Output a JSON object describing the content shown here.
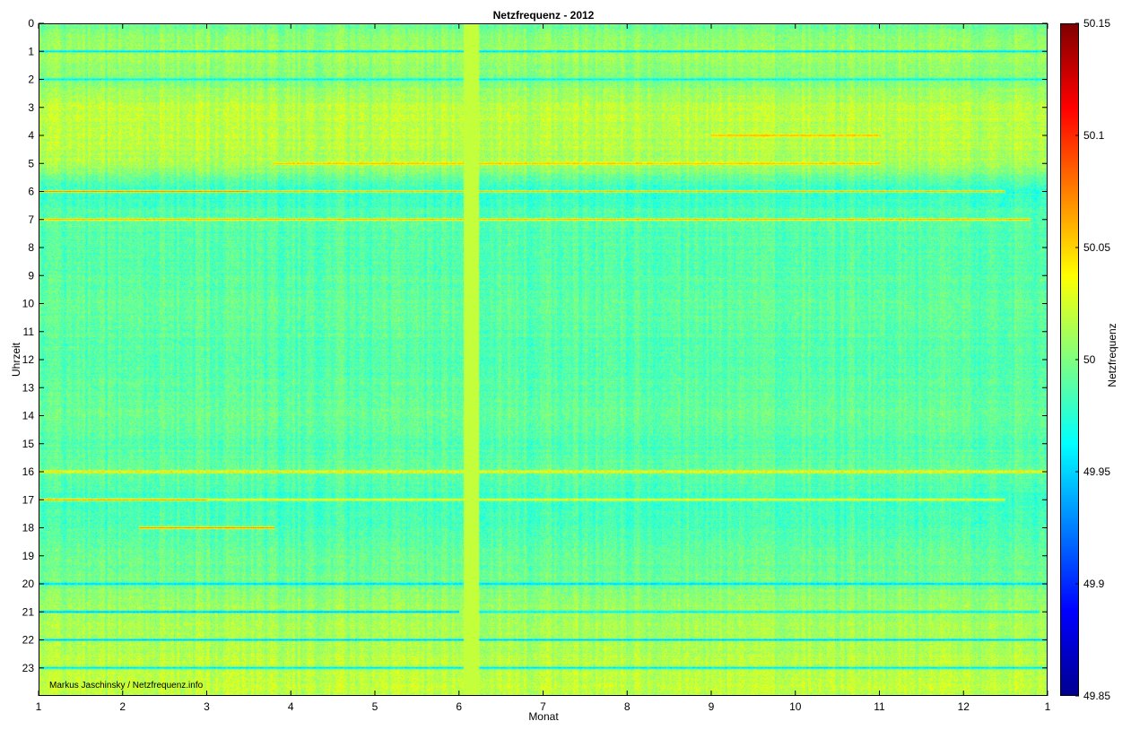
{
  "chart_data": {
    "type": "heatmap",
    "title": "Netzfrequenz - 2012",
    "xlabel": "Monat",
    "ylabel": "Uhrzeit",
    "colorbar_label": "Netzfrequenz",
    "colormap": "jet",
    "colormap_stops": [
      "#00008f",
      "#0000ff",
      "#00ffff",
      "#ffff00",
      "#ff0000",
      "#800000"
    ],
    "clim": [
      49.85,
      50.15
    ],
    "xlim": [
      1,
      13
    ],
    "ylim": [
      0,
      24
    ],
    "x_ticks": [
      {
        "value": 1,
        "label": "1"
      },
      {
        "value": 2,
        "label": "2"
      },
      {
        "value": 3,
        "label": "3"
      },
      {
        "value": 4,
        "label": "4"
      },
      {
        "value": 5,
        "label": "5"
      },
      {
        "value": 6,
        "label": "6"
      },
      {
        "value": 7,
        "label": "7"
      },
      {
        "value": 8,
        "label": "8"
      },
      {
        "value": 9,
        "label": "9"
      },
      {
        "value": 10,
        "label": "10"
      },
      {
        "value": 11,
        "label": "11"
      },
      {
        "value": 12,
        "label": "12"
      },
      {
        "value": 13,
        "label": "1"
      }
    ],
    "y_ticks": [
      {
        "value": 0,
        "label": "0"
      },
      {
        "value": 1,
        "label": "1"
      },
      {
        "value": 2,
        "label": "2"
      },
      {
        "value": 3,
        "label": "3"
      },
      {
        "value": 4,
        "label": "4"
      },
      {
        "value": 5,
        "label": "5"
      },
      {
        "value": 6,
        "label": "6"
      },
      {
        "value": 7,
        "label": "7"
      },
      {
        "value": 8,
        "label": "8"
      },
      {
        "value": 9,
        "label": "9"
      },
      {
        "value": 10,
        "label": "10"
      },
      {
        "value": 11,
        "label": "11"
      },
      {
        "value": 12,
        "label": "12"
      },
      {
        "value": 13,
        "label": "13"
      },
      {
        "value": 14,
        "label": "14"
      },
      {
        "value": 15,
        "label": "15"
      },
      {
        "value": 16,
        "label": "16"
      },
      {
        "value": 17,
        "label": "17"
      },
      {
        "value": 18,
        "label": "18"
      },
      {
        "value": 19,
        "label": "19"
      },
      {
        "value": 20,
        "label": "20"
      },
      {
        "value": 21,
        "label": "21"
      },
      {
        "value": 22,
        "label": "22"
      },
      {
        "value": 23,
        "label": "23"
      }
    ],
    "colorbar_ticks": [
      {
        "value": 49.85,
        "label": "49.85"
      },
      {
        "value": 49.9,
        "label": "49.9"
      },
      {
        "value": 49.95,
        "label": "49.95"
      },
      {
        "value": 50.0,
        "label": "50"
      },
      {
        "value": 50.05,
        "label": "50.05"
      },
      {
        "value": 50.1,
        "label": "50.1"
      },
      {
        "value": 50.15,
        "label": "50.15"
      }
    ],
    "baseline_by_hour": [
      49.992,
      50.012,
      50.0,
      50.018,
      50.016,
      50.012,
      49.975,
      49.988,
      49.986,
      49.988,
      49.99,
      49.988,
      49.986,
      49.99,
      49.992,
      49.986,
      49.992,
      49.98,
      49.985,
      49.992,
      49.996,
      50.01,
      50.012,
      50.018
    ],
    "hour_boundary_events": [
      {
        "hour": 1,
        "value": 49.93,
        "months": [
          1,
          13
        ]
      },
      {
        "hour": 2,
        "value": 49.95,
        "months": [
          1,
          13
        ]
      },
      {
        "hour": 4,
        "value": 50.07,
        "months": [
          9,
          11
        ]
      },
      {
        "hour": 5,
        "value": 50.07,
        "months": [
          3.8,
          11
        ]
      },
      {
        "hour": 6,
        "value": 50.09,
        "months": [
          1,
          3.5
        ]
      },
      {
        "hour": 6,
        "value": 50.07,
        "months": [
          3.5,
          12.5
        ]
      },
      {
        "hour": 7,
        "value": 50.08,
        "months": [
          1,
          12.8
        ]
      },
      {
        "hour": 16,
        "value": 50.07,
        "months": [
          1,
          13
        ]
      },
      {
        "hour": 17,
        "value": 50.09,
        "months": [
          1,
          3
        ]
      },
      {
        "hour": 17,
        "value": 50.06,
        "months": [
          3,
          12.5
        ]
      },
      {
        "hour": 18,
        "value": 50.09,
        "months": [
          2.2,
          3.8
        ]
      },
      {
        "hour": 20,
        "value": 49.93,
        "months": [
          1,
          13
        ]
      },
      {
        "hour": 21,
        "value": 49.92,
        "months": [
          1,
          6
        ]
      },
      {
        "hour": 21,
        "value": 49.94,
        "months": [
          6.2,
          12.9
        ]
      },
      {
        "hour": 22,
        "value": 49.93,
        "months": [
          1,
          13
        ]
      },
      {
        "hour": 23,
        "value": 49.93,
        "months": [
          1,
          13
        ]
      }
    ],
    "data_gap": {
      "months": [
        6.06,
        6.24
      ],
      "value": 50.02
    },
    "annotation": "Markus Jaschinsky / Netzfrequenz.info"
  }
}
